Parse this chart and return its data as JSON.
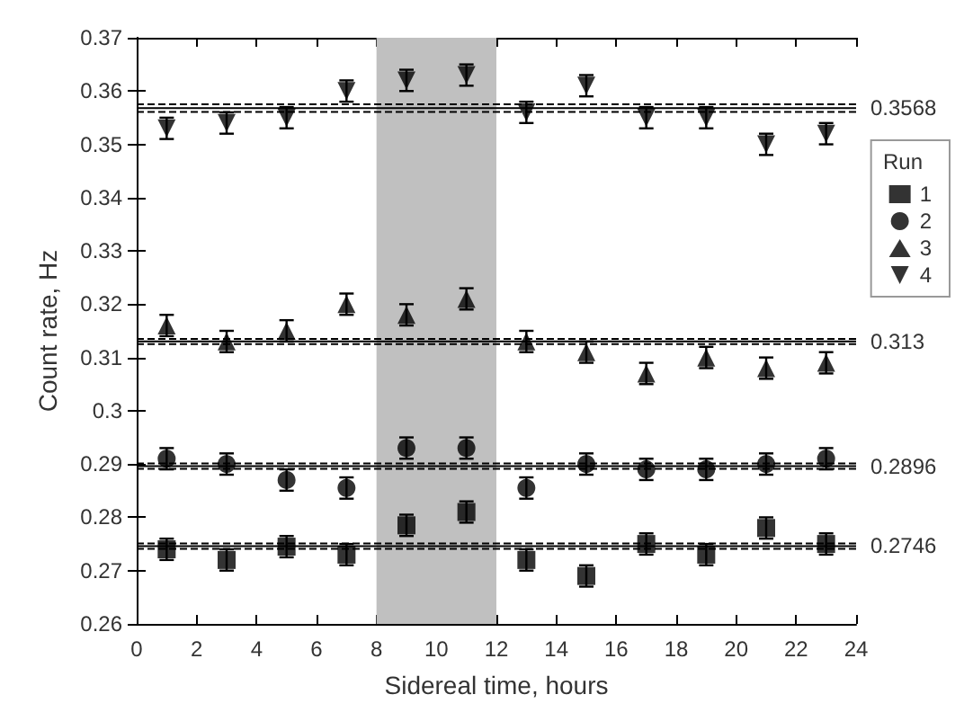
{
  "chart_data": {
    "type": "scatter",
    "xlabel": "Sidereal time, hours",
    "ylabel": "Count rate, Hz",
    "legend_title": "Run",
    "legend": "right",
    "grid": false,
    "x": [
      1,
      3,
      5,
      7,
      9,
      11,
      13,
      15,
      17,
      19,
      21,
      23
    ],
    "xlim": [
      0,
      24
    ],
    "xticks": [
      0,
      2,
      4,
      6,
      8,
      10,
      12,
      14,
      16,
      18,
      20,
      22,
      24
    ],
    "ylim": [
      0.26,
      0.37
    ],
    "yticks": [
      0.26,
      0.27,
      0.28,
      0.29,
      0.3,
      0.31,
      0.32,
      0.33,
      0.34,
      0.35,
      0.36,
      0.37
    ],
    "series": [
      {
        "name": "1",
        "color": "#000000",
        "marker": "square",
        "values": [
          0.274,
          0.272,
          0.2745,
          0.273,
          0.2785,
          0.281,
          0.272,
          0.269,
          0.275,
          0.273,
          0.278,
          0.275
        ],
        "errors": [
          0.002,
          0.002,
          0.002,
          0.002,
          0.002,
          0.002,
          0.002,
          0.002,
          0.002,
          0.002,
          0.002,
          0.002
        ]
      },
      {
        "name": "2",
        "color": "#000000",
        "marker": "circle",
        "values": [
          0.291,
          0.29,
          0.287,
          0.2855,
          0.293,
          0.293,
          0.2855,
          0.29,
          0.289,
          0.289,
          0.29,
          0.291
        ],
        "errors": [
          0.002,
          0.002,
          0.002,
          0.002,
          0.002,
          0.002,
          0.002,
          0.002,
          0.002,
          0.002,
          0.002,
          0.002
        ]
      },
      {
        "name": "3",
        "color": "#000000",
        "marker": "triangle",
        "values": [
          0.316,
          0.313,
          0.315,
          0.32,
          0.318,
          0.321,
          0.313,
          0.311,
          0.307,
          0.31,
          0.308,
          0.309
        ],
        "errors": [
          0.002,
          0.002,
          0.002,
          0.002,
          0.002,
          0.002,
          0.002,
          0.002,
          0.002,
          0.002,
          0.002,
          0.002
        ]
      },
      {
        "name": "4",
        "color": "#000000",
        "marker": "triangle-down",
        "values": [
          0.353,
          0.354,
          0.355,
          0.36,
          0.362,
          0.363,
          0.356,
          0.361,
          0.355,
          0.355,
          0.35,
          0.352
        ],
        "errors": [
          0.002,
          0.002,
          0.002,
          0.002,
          0.002,
          0.002,
          0.002,
          0.002,
          0.002,
          0.002,
          0.002,
          0.002
        ]
      }
    ],
    "ref_lines": [
      {
        "axis": "y",
        "value": 0.3568,
        "label": "0.3568",
        "color": "#000000",
        "line_style": "solid"
      },
      {
        "axis": "y",
        "value": 0.3575,
        "label": null,
        "color": "#000000",
        "line_style": "dashed"
      },
      {
        "axis": "y",
        "value": 0.3561,
        "label": null,
        "color": "#000000",
        "line_style": "dashed"
      },
      {
        "axis": "y",
        "value": 0.313,
        "label": "0.313",
        "color": "#000000",
        "line_style": "solid"
      },
      {
        "axis": "y",
        "value": 0.3135,
        "label": null,
        "color": "#000000",
        "line_style": "dashed"
      },
      {
        "axis": "y",
        "value": 0.3125,
        "label": null,
        "color": "#000000",
        "line_style": "dashed"
      },
      {
        "axis": "y",
        "value": 0.2896,
        "label": "0.2896",
        "color": "#000000",
        "line_style": "solid"
      },
      {
        "axis": "y",
        "value": 0.2901,
        "label": null,
        "color": "#000000",
        "line_style": "dashed"
      },
      {
        "axis": "y",
        "value": 0.2891,
        "label": null,
        "color": "#000000",
        "line_style": "dashed"
      },
      {
        "axis": "y",
        "value": 0.2746,
        "label": "0.2746",
        "color": "#000000",
        "line_style": "solid"
      },
      {
        "axis": "y",
        "value": 0.2751,
        "label": null,
        "color": "#000000",
        "line_style": "dashed"
      },
      {
        "axis": "y",
        "value": 0.2741,
        "label": null,
        "color": "#000000",
        "line_style": "dashed"
      }
    ],
    "bands": [
      {
        "axis": "x",
        "from": 8,
        "to": 12,
        "label": null,
        "color": "#c0c0c0"
      }
    ]
  }
}
